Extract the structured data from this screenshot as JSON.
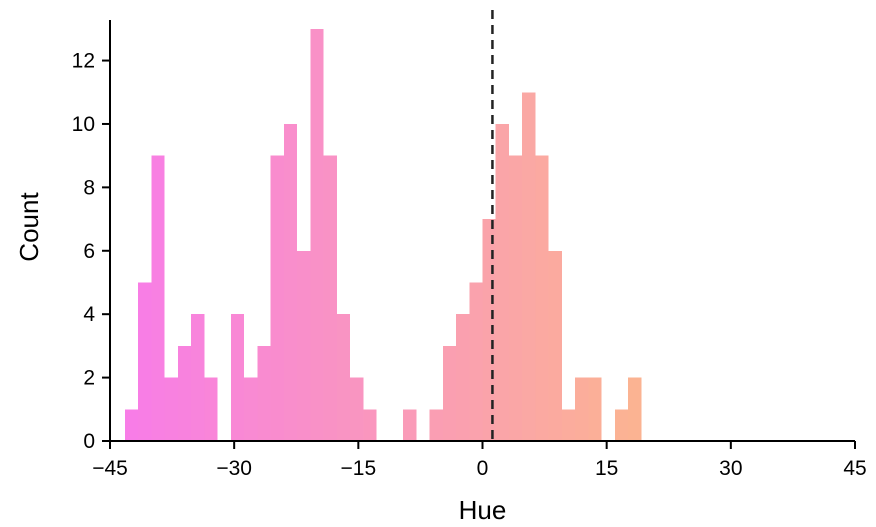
{
  "chart_data": {
    "type": "bar",
    "xlabel": "Hue",
    "ylabel": "Count",
    "xlim": [
      -45,
      45
    ],
    "ylim": [
      0,
      13.5
    ],
    "bin_width": 1.6,
    "x_ticks": [
      -45,
      -30,
      -15,
      0,
      15,
      30,
      45
    ],
    "x_tick_labels": [
      "−45",
      "−30",
      "−15",
      "0",
      "15",
      "30",
      "45"
    ],
    "y_ticks": [
      0,
      2,
      4,
      6,
      8,
      10,
      12
    ],
    "y_tick_labels": [
      "0",
      "2",
      "4",
      "6",
      "8",
      "10",
      "12"
    ],
    "reference_line_x": 1.2,
    "bins_start": [
      -43.2,
      -41.6,
      -40.0,
      -38.4,
      -36.8,
      -35.2,
      -33.6,
      -32.0,
      -30.4,
      -28.8,
      -27.2,
      -25.6,
      -24.0,
      -22.4,
      -20.8,
      -19.2,
      -17.6,
      -16.0,
      -14.4,
      -12.8,
      -11.2,
      -9.6,
      -8.0,
      -6.4,
      -4.8,
      -3.2,
      -1.6,
      0.0,
      1.6,
      3.2,
      4.8,
      6.4,
      8.0,
      9.6,
      11.2,
      12.8,
      14.4,
      16.0,
      17.6,
      19.2,
      20.8,
      22.4,
      24.0,
      25.6,
      27.2,
      28.8,
      30.4,
      32.0,
      33.6
    ],
    "counts": [
      1,
      5,
      9,
      2,
      3,
      4,
      2,
      0,
      4,
      2,
      3,
      9,
      10,
      6,
      13,
      9,
      4,
      2,
      1,
      0,
      0,
      1,
      0,
      1,
      3,
      4,
      5,
      7,
      10,
      9,
      11,
      9,
      6,
      1,
      2,
      2,
      0,
      1,
      2,
      0,
      0,
      0,
      0,
      0,
      0,
      0,
      0,
      0,
      0
    ],
    "color_start": "#f87ce8",
    "color_end": "#fcc27a",
    "grid": false,
    "legend": "none"
  }
}
